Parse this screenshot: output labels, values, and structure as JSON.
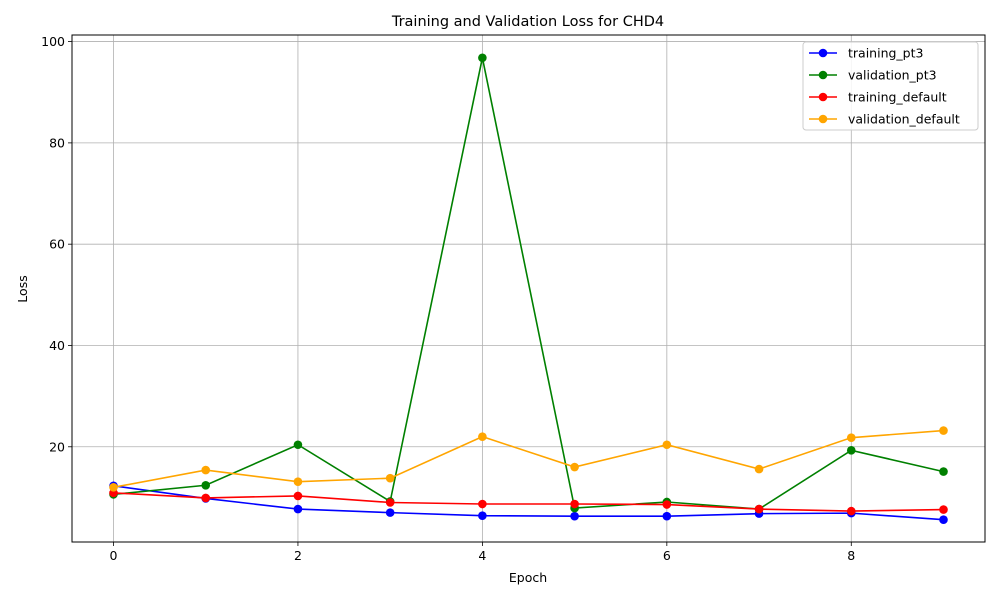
{
  "chart_data": {
    "type": "line",
    "title": "Training and Validation Loss for CHD4",
    "xlabel": "Epoch",
    "ylabel": "Loss",
    "x": [
      0,
      1,
      2,
      3,
      4,
      5,
      6,
      7,
      8,
      9
    ],
    "xlim": [
      -0.45,
      9.45
    ],
    "ylim": [
      1.2,
      101.3
    ],
    "xticks": [
      0,
      2,
      4,
      6,
      8
    ],
    "yticks": [
      20,
      40,
      60,
      80,
      100
    ],
    "grid": true,
    "legend_position": "top-right",
    "series": [
      {
        "name": "training_pt3",
        "color": "#0000ff",
        "values": [
          12.3,
          9.8,
          7.7,
          7.0,
          6.4,
          6.3,
          6.3,
          6.8,
          6.9,
          5.6
        ]
      },
      {
        "name": "validation_pt3",
        "color": "#008000",
        "values": [
          10.6,
          12.4,
          20.4,
          9.2,
          96.8,
          7.9,
          9.1,
          7.7,
          19.3,
          15.1
        ]
      },
      {
        "name": "training_default",
        "color": "#ff0000",
        "values": [
          10.9,
          9.9,
          10.3,
          9.0,
          8.7,
          8.7,
          8.6,
          7.7,
          7.3,
          7.6
        ]
      },
      {
        "name": "validation_default",
        "color": "#ffa500",
        "values": [
          12.0,
          15.4,
          13.1,
          13.8,
          22.0,
          16.0,
          20.4,
          15.6,
          21.8,
          23.2
        ]
      }
    ]
  }
}
